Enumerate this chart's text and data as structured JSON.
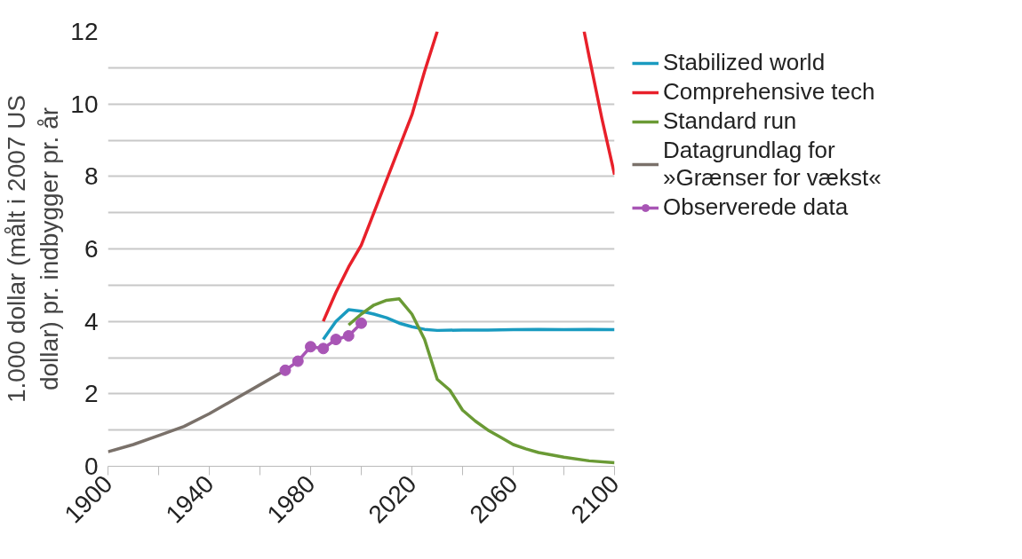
{
  "chart_data": {
    "type": "line",
    "ylabel": "1.000 dollar (målt i 2007 US\ndollar) pr. indbygger pr. år",
    "xlim": [
      1900,
      2100
    ],
    "xticks": [
      1900,
      {
        "value": 1920,
        "label": null
      },
      1940,
      {
        "value": 1960,
        "label": null
      },
      1980,
      {
        "value": 2000,
        "label": null
      },
      2020,
      {
        "value": 2040,
        "label": null
      },
      2060,
      {
        "value": 2080,
        "label": null
      },
      2100
    ],
    "ylim": [
      0,
      12
    ],
    "yticks": [
      0,
      {
        "value": 1,
        "label": null
      },
      2,
      {
        "value": 3,
        "label": null
      },
      4,
      {
        "value": 5,
        "label": null
      },
      6,
      {
        "value": 7,
        "label": null
      },
      8,
      {
        "value": 9,
        "label": null
      },
      10,
      {
        "value": 11,
        "label": null
      },
      12
    ],
    "grid": "y",
    "legend": "right",
    "line_style": "solid",
    "series": [
      {
        "name": "Stabilized world",
        "color": "#1a9bc0",
        "x": [
          1985,
          1990,
          1995,
          2000,
          2005,
          2010,
          2015,
          2020,
          2025,
          2030,
          2040,
          2050,
          2060,
          2070,
          2080,
          2090,
          2100
        ],
        "values": [
          3.5,
          4.0,
          4.32,
          4.28,
          4.2,
          4.1,
          3.95,
          3.85,
          3.78,
          3.75,
          3.76,
          3.76,
          3.77,
          3.78,
          3.77,
          3.78,
          3.77
        ]
      },
      {
        "name": "Comprehensive tech",
        "color": "#e8202a",
        "x": [
          1985,
          1990,
          1995,
          2000,
          2005,
          2010,
          2015,
          2020,
          2025,
          2030,
          2040,
          2050,
          2060,
          2070,
          2080,
          2088,
          2090,
          2095,
          2100
        ],
        "values": [
          4.0,
          4.8,
          5.5,
          6.1,
          7.0,
          7.9,
          8.8,
          9.7,
          10.9,
          12.0,
          null,
          null,
          null,
          null,
          null,
          12.0,
          11.3,
          9.6,
          8.05
        ]
      },
      {
        "name": "Standard run",
        "color": "#6a9a35",
        "x": [
          1995,
          2000,
          2005,
          2010,
          2015,
          2020,
          2025,
          2030,
          2035,
          2040,
          2045,
          2050,
          2055,
          2060,
          2065,
          2070,
          2080,
          2090,
          2100
        ],
        "values": [
          3.9,
          4.2,
          4.45,
          4.58,
          4.62,
          4.2,
          3.5,
          2.4,
          2.1,
          1.55,
          1.25,
          1.0,
          0.8,
          0.6,
          0.48,
          0.38,
          0.25,
          0.15,
          0.1
        ]
      },
      {
        "name": "Datagrundlag for\n»Grænser for vækst«",
        "color": "#7a716a",
        "x": [
          1900,
          1910,
          1920,
          1930,
          1940,
          1950,
          1960,
          1970
        ],
        "values": [
          0.4,
          0.6,
          0.85,
          1.1,
          1.45,
          1.85,
          2.25,
          2.65
        ]
      },
      {
        "name": "Observerede data",
        "color": "#a855b5",
        "marker": "circle",
        "x": [
          1970,
          1975,
          1980,
          1985,
          1990,
          1995,
          2000
        ],
        "values": [
          2.65,
          2.9,
          3.3,
          3.25,
          3.5,
          3.6,
          3.95
        ]
      }
    ]
  }
}
